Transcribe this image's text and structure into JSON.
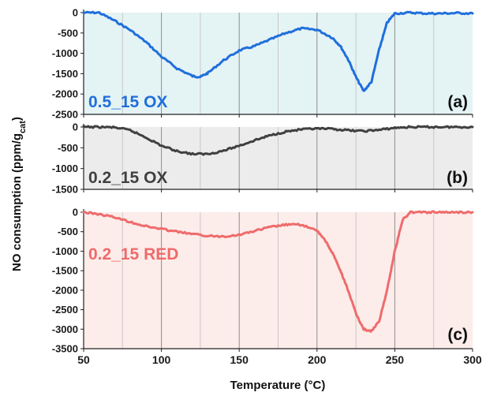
{
  "chart_data": {
    "type": "line",
    "xlabel": "Temperature (°C)",
    "ylabel": "NO consumption (ppm/g",
    "ylabel_sub": "cat",
    "ylabel_end": ")",
    "xlim": [
      50,
      300
    ],
    "xticks": [
      50,
      100,
      150,
      200,
      250,
      300
    ],
    "x_minor_gridlines": [
      75,
      125,
      175,
      225,
      275
    ],
    "grid": true,
    "panels": [
      {
        "tag": "(a)",
        "series_name": "0.5_15 OX",
        "color": "#1f6fdc",
        "background": "#e4f3f4",
        "ylim": [
          -2500,
          0
        ],
        "yticks": [
          0,
          -500,
          -1000,
          -1500,
          -2000,
          -2500
        ],
        "x": [
          50,
          60,
          70,
          80,
          90,
          100,
          110,
          120,
          125,
          130,
          140,
          150,
          160,
          170,
          180,
          190,
          200,
          210,
          215,
          220,
          225,
          230,
          235,
          240,
          245,
          250,
          260,
          270,
          280,
          290,
          300
        ],
        "y": [
          0,
          0,
          -200,
          -430,
          -720,
          -1080,
          -1370,
          -1560,
          -1580,
          -1480,
          -1170,
          -930,
          -820,
          -660,
          -500,
          -390,
          -420,
          -620,
          -820,
          -1150,
          -1580,
          -1930,
          -1700,
          -900,
          -250,
          -20,
          0,
          -20,
          -20,
          -10,
          -20
        ]
      },
      {
        "tag": "(b)",
        "series_name": "0.2_15 OX",
        "color": "#404040",
        "background": "#ececec",
        "ylim": [
          -1500,
          0
        ],
        "yticks": [
          0,
          -500,
          -1000,
          -1500
        ],
        "x": [
          50,
          60,
          70,
          80,
          90,
          100,
          110,
          120,
          130,
          140,
          150,
          160,
          170,
          180,
          190,
          200,
          210,
          220,
          230,
          240,
          250,
          260,
          270,
          280,
          290,
          300
        ],
        "y": [
          0,
          0,
          -10,
          -80,
          -250,
          -450,
          -580,
          -650,
          -650,
          -570,
          -450,
          -320,
          -200,
          -110,
          -60,
          -40,
          -50,
          -80,
          -100,
          -70,
          -20,
          0,
          0,
          0,
          0,
          0
        ]
      },
      {
        "tag": "(c)",
        "series_name": "0.2_15 RED",
        "color": "#ef6b6b",
        "background": "#fcecea",
        "ylim": [
          -3500,
          0
        ],
        "yticks": [
          0,
          -500,
          -1000,
          -1500,
          -2000,
          -2500,
          -3000,
          -3500
        ],
        "x": [
          50,
          60,
          70,
          80,
          90,
          100,
          110,
          120,
          130,
          140,
          150,
          160,
          170,
          180,
          190,
          200,
          205,
          210,
          215,
          220,
          225,
          230,
          235,
          240,
          245,
          250,
          255,
          260,
          270,
          280,
          290,
          300
        ],
        "y": [
          0,
          -50,
          -130,
          -250,
          -360,
          -430,
          -500,
          -560,
          -610,
          -620,
          -580,
          -480,
          -380,
          -320,
          -320,
          -480,
          -700,
          -1050,
          -1500,
          -2000,
          -2600,
          -3000,
          -3050,
          -2800,
          -2000,
          -1000,
          -200,
          0,
          0,
          0,
          0,
          0
        ]
      }
    ]
  }
}
